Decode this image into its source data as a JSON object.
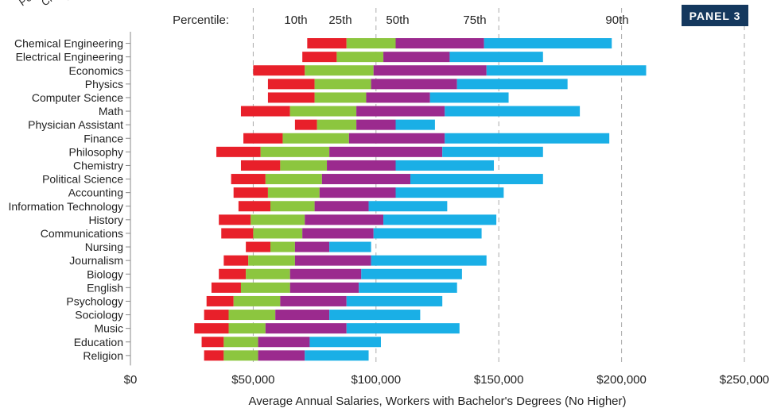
{
  "panel_label": "PANEL 3",
  "partial_top_labels": [
    "Petro",
    "Chem",
    "C"
  ],
  "colors": {
    "seg1": "#e8202a",
    "seg2": "#8cc63f",
    "seg3": "#9b2a8e",
    "seg4": "#1aafe6",
    "grid": "#aaaaaa",
    "text": "#222222"
  },
  "chart_data": {
    "type": "bar",
    "orientation": "horizontal",
    "stacked_ranges": true,
    "percentile_header": "Percentile:",
    "percentiles": [
      "10th",
      "25th",
      "50th",
      "75th",
      "90th"
    ],
    "xlabel": "Average Annual Salaries, Workers with Bachelor's Degrees (No Higher)",
    "xlim": [
      0,
      250000
    ],
    "xticks": [
      {
        "value": 0,
        "label": "$0"
      },
      {
        "value": 50000,
        "label": "$50,000"
      },
      {
        "value": 100000,
        "label": "$100,000"
      },
      {
        "value": 150000,
        "label": "$150,000"
      },
      {
        "value": 200000,
        "label": "$200,000"
      },
      {
        "value": 250000,
        "label": "$250,000"
      }
    ],
    "grid": "vertical dashed",
    "categories": [
      "Chemical Engineering",
      "Electrical Engineering",
      "Economics",
      "Physics",
      "Computer Science",
      "Math",
      "Physician Assistant",
      "Finance",
      "Philosophy",
      "Chemistry",
      "Political Science",
      "Accounting",
      "Information Technology",
      "History",
      "Communications",
      "Nursing",
      "Journalism",
      "Biology",
      "English",
      "Psychology",
      "Sociology",
      "Music",
      "Education",
      "Religion"
    ],
    "rows": [
      [
        72000,
        88000,
        108000,
        144000,
        196000
      ],
      [
        70000,
        84000,
        103000,
        130000,
        168000
      ],
      [
        50000,
        71000,
        99000,
        145000,
        210000
      ],
      [
        56000,
        75000,
        98000,
        133000,
        178000
      ],
      [
        56000,
        75000,
        96000,
        122000,
        154000
      ],
      [
        45000,
        65000,
        92000,
        128000,
        183000
      ],
      [
        67000,
        76000,
        92000,
        108000,
        124000
      ],
      [
        46000,
        62000,
        89000,
        128000,
        195000
      ],
      [
        35000,
        53000,
        81000,
        127000,
        168000
      ],
      [
        45000,
        61000,
        80000,
        108000,
        148000
      ],
      [
        41000,
        55000,
        78000,
        114000,
        168000
      ],
      [
        42000,
        56000,
        77000,
        108000,
        152000
      ],
      [
        44000,
        57000,
        75000,
        97000,
        129000
      ],
      [
        36000,
        49000,
        71000,
        103000,
        149000
      ],
      [
        37000,
        50000,
        70000,
        99000,
        143000
      ],
      [
        47000,
        57000,
        67000,
        81000,
        98000
      ],
      [
        38000,
        48000,
        67000,
        98000,
        145000
      ],
      [
        36000,
        47000,
        65000,
        94000,
        135000
      ],
      [
        33000,
        45000,
        65000,
        93000,
        133000
      ],
      [
        31000,
        42000,
        61000,
        88000,
        127000
      ],
      [
        30000,
        40000,
        59000,
        81000,
        118000
      ],
      [
        26000,
        40000,
        55000,
        88000,
        134000
      ],
      [
        29000,
        38000,
        52000,
        73000,
        102000
      ],
      [
        30000,
        38000,
        52000,
        71000,
        97000
      ]
    ]
  }
}
